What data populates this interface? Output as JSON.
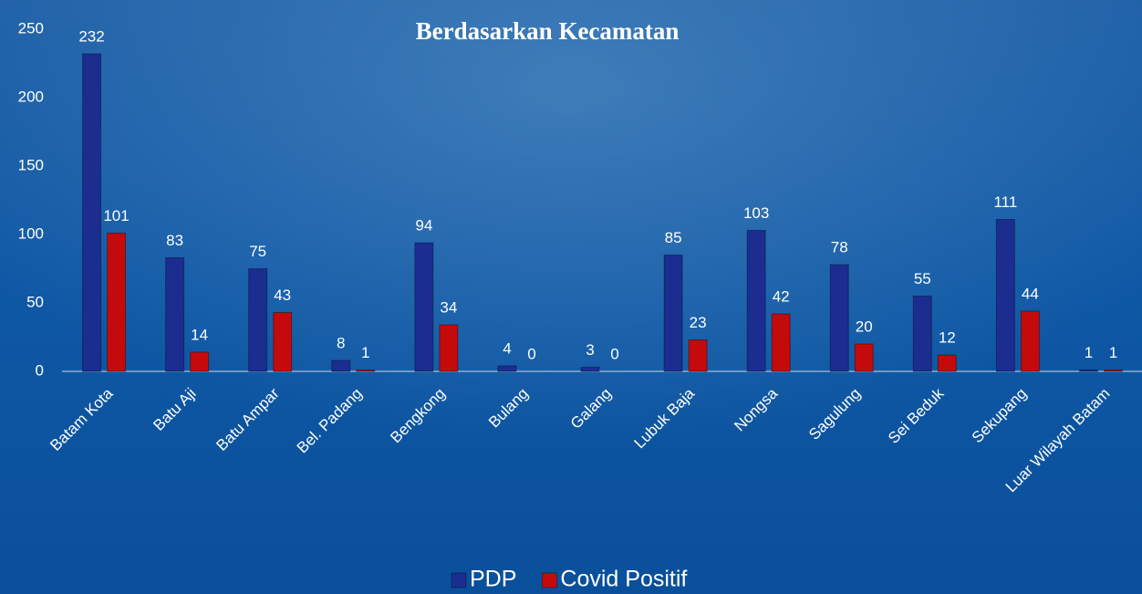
{
  "chart_data": {
    "type": "bar",
    "title": "Berdasarkan Kecamatan",
    "categories": [
      "Batam Kota",
      "Batu Aji",
      "Batu Ampar",
      "Bel. Padang",
      "Bengkong",
      "Bulang",
      "Galang",
      "Lubuk Baja",
      "Nongsa",
      "Sagulung",
      "Sei Beduk",
      "Sekupang",
      "Luar Wilayah Batam"
    ],
    "series": [
      {
        "name": "PDP",
        "color": "#1b2d8f",
        "values": [
          232,
          83,
          75,
          8,
          94,
          4,
          3,
          85,
          103,
          78,
          55,
          111,
          1
        ]
      },
      {
        "name": "Covid Positif",
        "color": "#c40a0a",
        "values": [
          101,
          14,
          43,
          1,
          34,
          0,
          0,
          23,
          42,
          20,
          12,
          44,
          1
        ]
      }
    ],
    "ylim": [
      0,
      250
    ],
    "yticks": [
      0,
      50,
      100,
      150,
      200,
      250
    ],
    "legend": "bottom"
  }
}
